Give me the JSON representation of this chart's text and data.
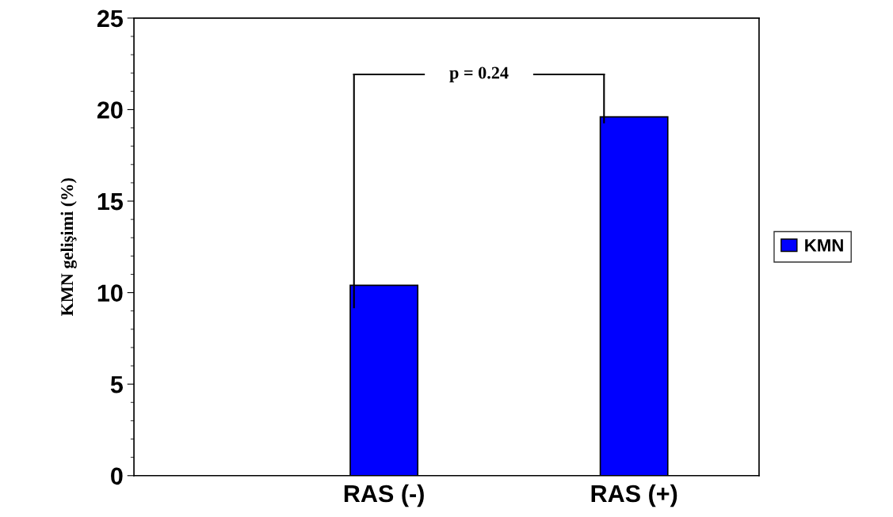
{
  "chart_data": {
    "type": "bar",
    "ylabel": "KMN gelişimi (%)",
    "categories": [
      "RAS (-)",
      "RAS (+)"
    ],
    "series": [
      {
        "name": "KMN",
        "color": "#0000ff",
        "values": [
          10.4,
          19.6
        ]
      }
    ],
    "ylim": [
      0,
      25
    ],
    "yticks": [
      0,
      5,
      10,
      15,
      20,
      25
    ],
    "annotations": [
      "p = 0.24"
    ],
    "legend": "right",
    "grid": false
  }
}
